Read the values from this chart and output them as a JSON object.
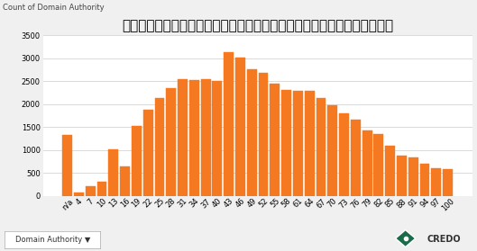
{
  "title": "大手新興企業にリンクしている全ドメインのドメインオーソリティの分布",
  "ylabel": "Count of Domain Authority",
  "bar_color": "#F47920",
  "background_color": "#F0F0F0",
  "plot_bg_color": "#FFFFFF",
  "grid_color": "#CCCCCC",
  "categories": [
    "n/a",
    "4",
    "7",
    "10",
    "13",
    "16",
    "19",
    "22",
    "25",
    "28",
    "31",
    "34",
    "37",
    "40",
    "43",
    "46",
    "49",
    "52",
    "55",
    "58",
    "61",
    "64",
    "67",
    "70",
    "73",
    "76",
    "79",
    "82",
    "85",
    "88",
    "91",
    "94",
    "97",
    "100"
  ],
  "values": [
    1330,
    70,
    200,
    310,
    1010,
    640,
    1530,
    1870,
    2130,
    2340,
    2550,
    2520,
    2540,
    2510,
    3120,
    3010,
    2760,
    2680,
    2450,
    2310,
    2290,
    2280,
    2120,
    1970,
    1790,
    1650,
    1420,
    1350,
    1100,
    880,
    840,
    700,
    600,
    580
  ],
  "ylim": [
    0,
    3500
  ],
  "yticks": [
    0,
    500,
    1000,
    1500,
    2000,
    2500,
    3000,
    3500
  ],
  "title_fontsize": 11,
  "tick_fontsize": 6,
  "ylabel_fontsize": 6,
  "credo_text": "CREDO",
  "dropdown_text": "Domain Authority ▼",
  "diamond_color": "#1a6b4a"
}
